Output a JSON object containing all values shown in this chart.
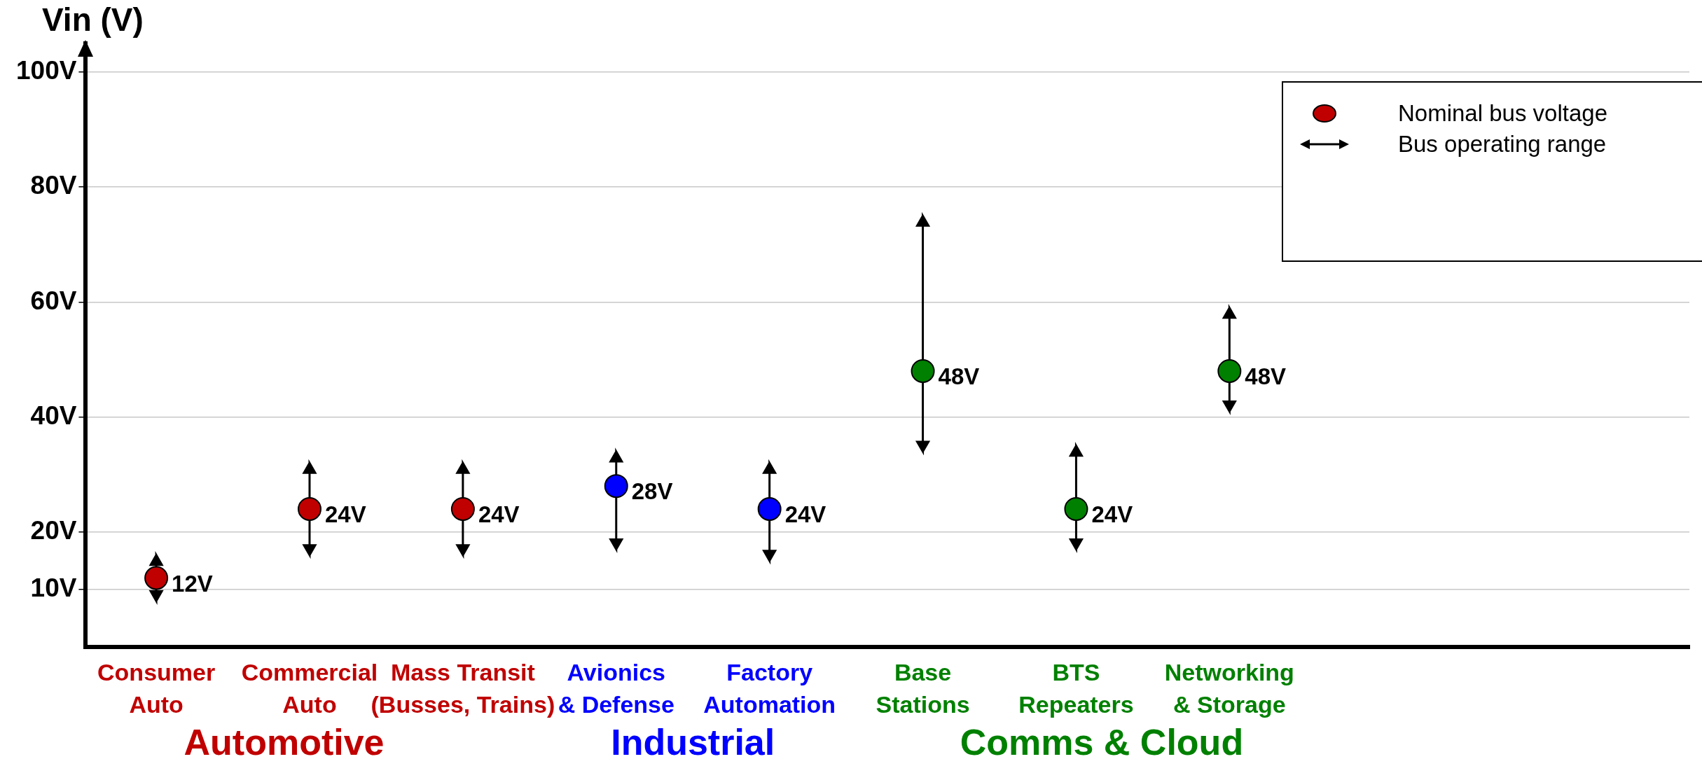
{
  "chart_data": {
    "type": "scatter",
    "ylabel": "Vin (V)",
    "categories": [
      "Consumer\nAuto",
      "Commercial\nAuto",
      "Mass Transit\n(Busses, Trains)",
      "Avionics\n& Defense",
      "Factory\nAutomation",
      "Base\nStations",
      "BTS\nRepeaters",
      "Networking\n& Storage"
    ],
    "series": [
      {
        "name": "Nominal bus voltage",
        "color": "#c00000",
        "colors": [
          "#c00000",
          "#c00000",
          "#c00000",
          "#0000ff",
          "#0000ff",
          "#008000",
          "#008000",
          "#008000"
        ],
        "values": [
          12,
          24,
          24,
          28,
          24,
          48,
          24,
          48
        ],
        "errors": [
          [
            8,
            16
          ],
          [
            16,
            32
          ],
          [
            16,
            32
          ],
          [
            17,
            34
          ],
          [
            15,
            32
          ],
          [
            34,
            75
          ],
          [
            17,
            35
          ],
          [
            41,
            59
          ]
        ],
        "value_labels": [
          "12V",
          "24V",
          "24V",
          "28V",
          "24V",
          "48V",
          "24V",
          "48V"
        ]
      }
    ],
    "ylim": [
      0,
      105
    ],
    "yticks": [
      {
        "value": 10,
        "label": "10V"
      },
      {
        "value": 20,
        "label": "20V"
      },
      {
        "value": 40,
        "label": "40V"
      },
      {
        "value": 60,
        "label": "60V"
      },
      {
        "value": 80,
        "label": "80V"
      },
      {
        "value": 100,
        "label": "100V"
      }
    ],
    "grid": "y",
    "legend": "top right",
    "marker": "circle",
    "annotations": [
      "Bus operating range",
      "Automotive",
      "Industrial",
      "Comms & Cloud"
    ]
  }
}
